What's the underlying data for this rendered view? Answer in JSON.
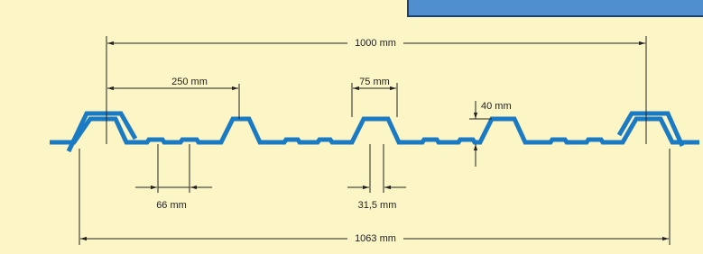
{
  "dimensions": {
    "total_width": "1000 mm",
    "pitch": "250 mm",
    "rib_top": "75 mm",
    "height": "40 mm",
    "stiffener_spacing": "66 mm",
    "rib_bottom": "31,5 mm",
    "overall_width": "1063 mm"
  }
}
